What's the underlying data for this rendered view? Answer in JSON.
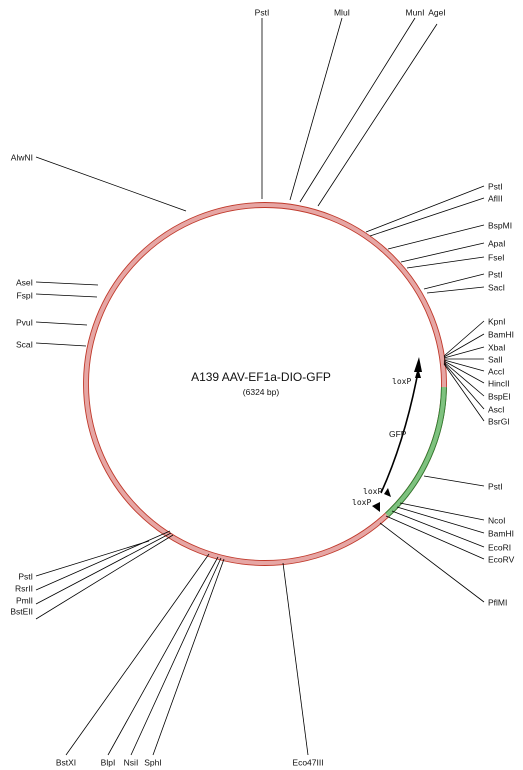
{
  "plasmid": {
    "name": "A139 AAV-EF1a-DIO-GFP",
    "size_label": "(6324 bp)",
    "backbone_color": "#d9534f",
    "insert_color": "#3a9a3a"
  },
  "features": {
    "gfp": "GFP",
    "loxp_top": "loxP",
    "loxp_bottom_a": "loxP",
    "loxp_bottom_b": "loxP"
  },
  "sites": [
    {
      "id": "PstI-top",
      "label": "PstI"
    },
    {
      "id": "MluI",
      "label": "MluI"
    },
    {
      "id": "MunI",
      "label": "MunI"
    },
    {
      "id": "AgeI",
      "label": "AgeI"
    },
    {
      "id": "PstI-r1",
      "label": "PstI"
    },
    {
      "id": "AflII",
      "label": "AflII"
    },
    {
      "id": "BspMI",
      "label": "BspMI"
    },
    {
      "id": "ApaI",
      "label": "ApaI"
    },
    {
      "id": "FseI",
      "label": "FseI"
    },
    {
      "id": "PstI-r2",
      "label": "PstI"
    },
    {
      "id": "SacI",
      "label": "SacI"
    },
    {
      "id": "KpnI",
      "label": "KpnI"
    },
    {
      "id": "BamHI-1",
      "label": "BamHI"
    },
    {
      "id": "XbaI",
      "label": "XbaI"
    },
    {
      "id": "SalI",
      "label": "SalI"
    },
    {
      "id": "AccI",
      "label": "AccI"
    },
    {
      "id": "HincII",
      "label": "HincII"
    },
    {
      "id": "BspEI",
      "label": "BspEI"
    },
    {
      "id": "AscI",
      "label": "AscI"
    },
    {
      "id": "BsrGI",
      "label": "BsrGI"
    },
    {
      "id": "PstI-r3",
      "label": "PstI"
    },
    {
      "id": "NcoI",
      "label": "NcoI"
    },
    {
      "id": "BamHI-2",
      "label": "BamHI"
    },
    {
      "id": "EcoRI",
      "label": "EcoRI"
    },
    {
      "id": "EcoRV",
      "label": "EcoRV"
    },
    {
      "id": "PflMI",
      "label": "PflMI"
    },
    {
      "id": "Eco47III",
      "label": "Eco47III"
    },
    {
      "id": "SphI",
      "label": "SphI"
    },
    {
      "id": "NsiI",
      "label": "NsiI"
    },
    {
      "id": "BlpI",
      "label": "BlpI"
    },
    {
      "id": "BstXI",
      "label": "BstXI"
    },
    {
      "id": "BstEII",
      "label": "BstEII"
    },
    {
      "id": "PmlI",
      "label": "PmlI"
    },
    {
      "id": "RsrII",
      "label": "RsrII"
    },
    {
      "id": "PstI-l",
      "label": "PstI"
    },
    {
      "id": "ScaI",
      "label": "ScaI"
    },
    {
      "id": "PvuI",
      "label": "PvuI"
    },
    {
      "id": "FspI",
      "label": "FspI"
    },
    {
      "id": "AseI",
      "label": "AseI"
    },
    {
      "id": "AlwNI",
      "label": "AlwNI"
    }
  ]
}
